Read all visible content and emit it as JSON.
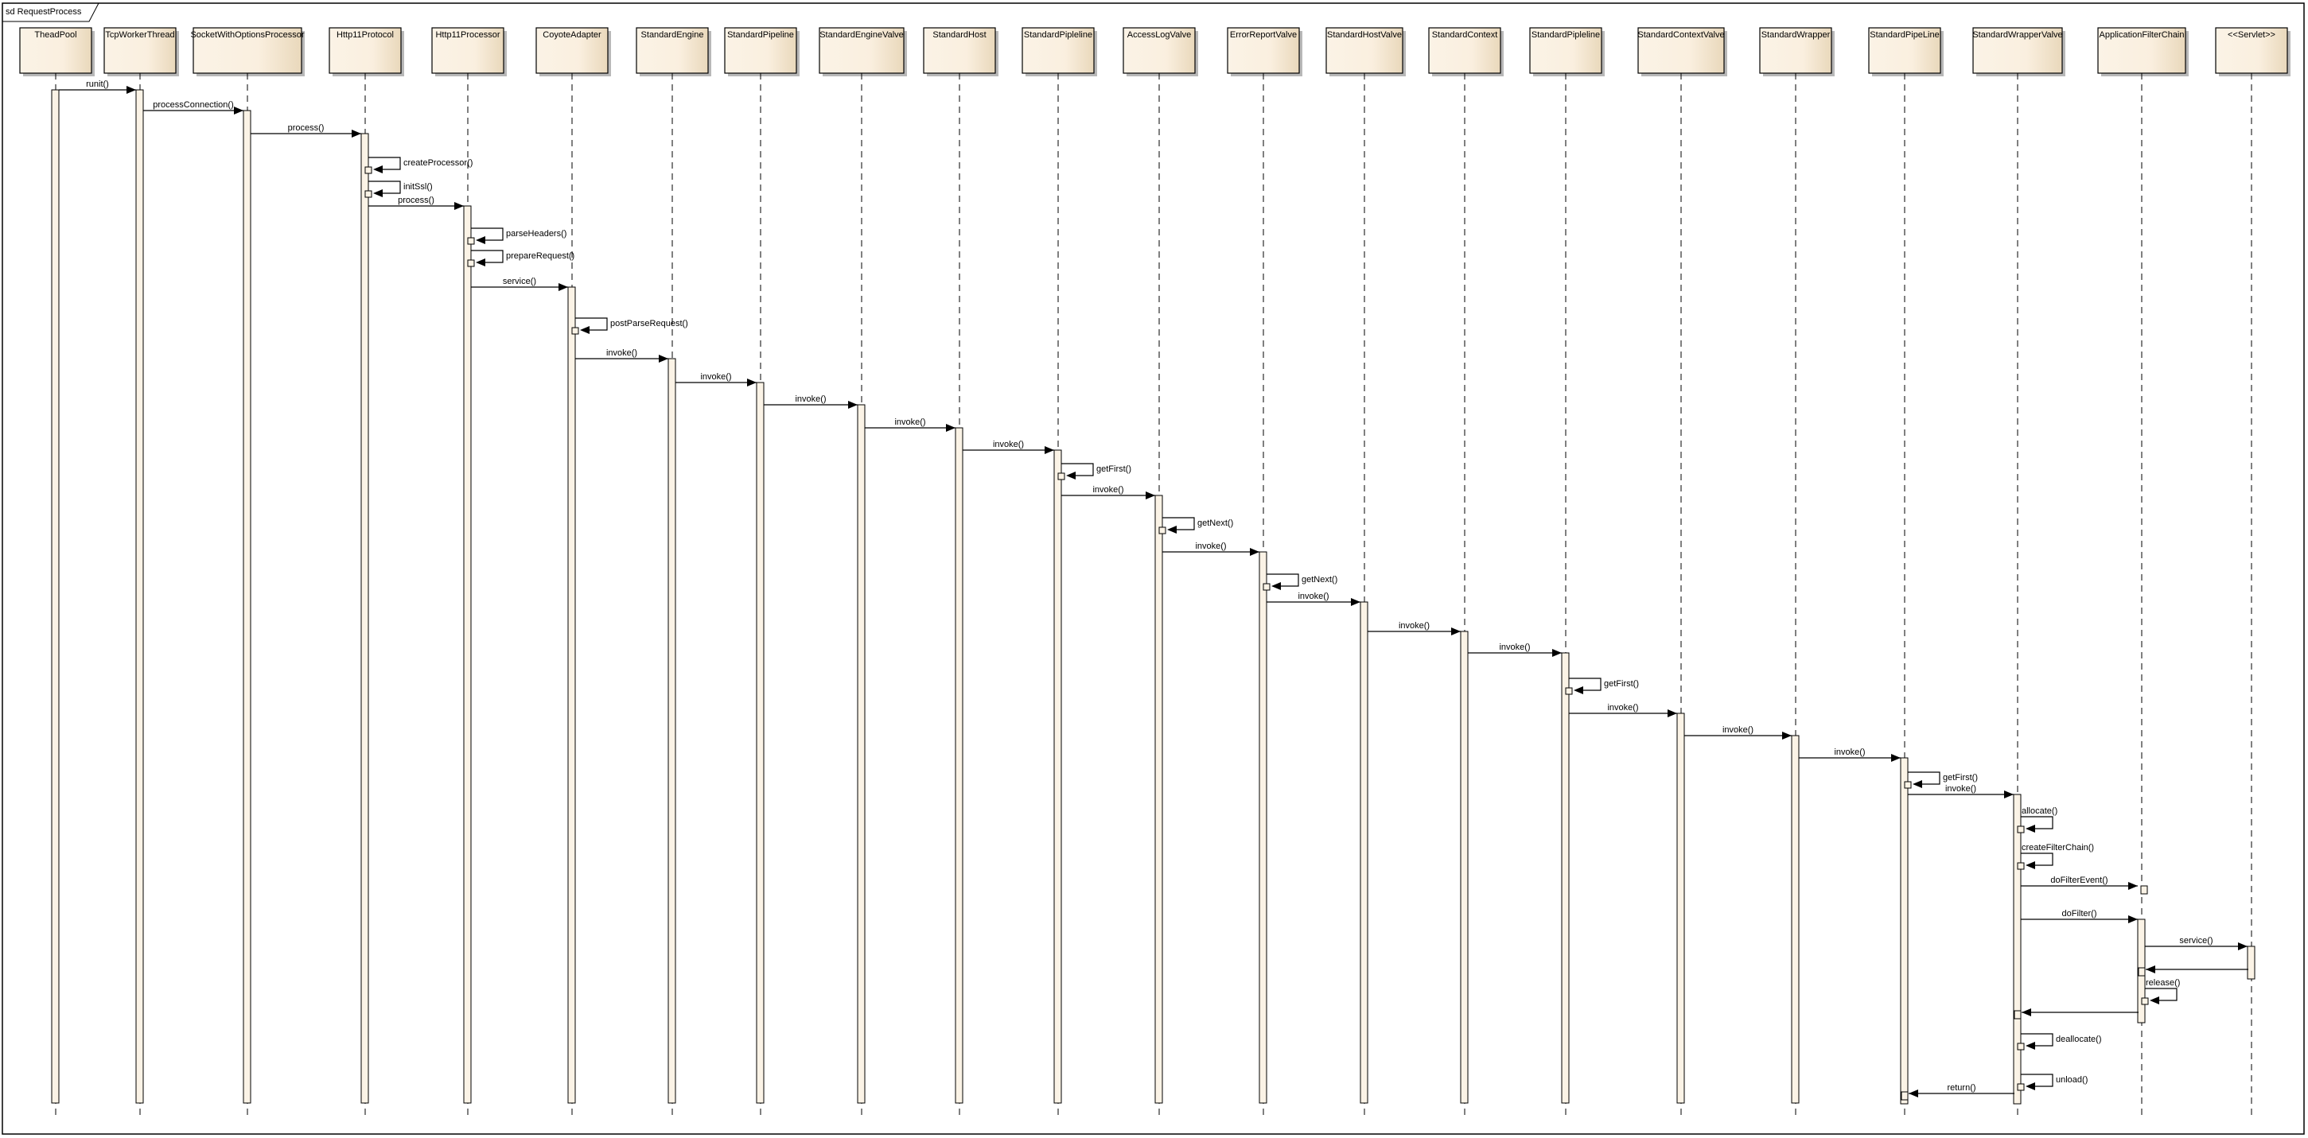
{
  "frame": {
    "title": "sd RequestProcess"
  },
  "colors": {
    "box_fill_light": "#fbf3e6",
    "box_fill_dark": "#ecdcc0",
    "activation_fill": "#fbf3e6",
    "line": "#000000",
    "shadow": "#a0a0a0"
  },
  "lifelines": [
    "TheadPool",
    "TcpWorkerThread",
    "SocketWithOptionsProcessor",
    "Http11Protocol",
    "Http11Processor",
    "CoyoteAdapter",
    "StandardEngine",
    "StandardPipeline",
    "StandardEngineValve",
    "StandardHost",
    "StandardPipleline",
    "AccessLogValve",
    "ErrorReportValve",
    "StandardHostValve",
    "StandardContext",
    "StandardPipleline",
    "StandardContextValve",
    "StandardWrapper",
    "StandardPipeLine",
    "StandardWrapperValve",
    "ApplicationFilterChain",
    "<<Servlet>>"
  ],
  "messages": [
    {
      "from": 0,
      "to": 1,
      "label": "runit()"
    },
    {
      "from": 1,
      "to": 2,
      "label": "processConnection()"
    },
    {
      "from": 2,
      "to": 3,
      "label": "process()"
    },
    {
      "from": 3,
      "to": 3,
      "label": "createProcessor()"
    },
    {
      "from": 3,
      "to": 3,
      "label": "initSsl()"
    },
    {
      "from": 3,
      "to": 4,
      "label": "process()"
    },
    {
      "from": 4,
      "to": 4,
      "label": "parseHeaders()"
    },
    {
      "from": 4,
      "to": 4,
      "label": "prepareRequest()"
    },
    {
      "from": 4,
      "to": 5,
      "label": "service()"
    },
    {
      "from": 5,
      "to": 5,
      "label": "postParseRequest()"
    },
    {
      "from": 5,
      "to": 6,
      "label": "invoke()"
    },
    {
      "from": 6,
      "to": 7,
      "label": "invoke()"
    },
    {
      "from": 7,
      "to": 8,
      "label": "invoke()"
    },
    {
      "from": 8,
      "to": 9,
      "label": "invoke()"
    },
    {
      "from": 9,
      "to": 10,
      "label": "invoke()"
    },
    {
      "from": 10,
      "to": 10,
      "label": "getFirst()"
    },
    {
      "from": 10,
      "to": 11,
      "label": "invoke()"
    },
    {
      "from": 11,
      "to": 11,
      "label": "getNext()"
    },
    {
      "from": 11,
      "to": 12,
      "label": "invoke()"
    },
    {
      "from": 12,
      "to": 12,
      "label": "getNext()"
    },
    {
      "from": 12,
      "to": 13,
      "label": "invoke()"
    },
    {
      "from": 13,
      "to": 14,
      "label": "invoke()"
    },
    {
      "from": 14,
      "to": 15,
      "label": "invoke()"
    },
    {
      "from": 15,
      "to": 15,
      "label": "getFirst()"
    },
    {
      "from": 15,
      "to": 16,
      "label": "invoke()"
    },
    {
      "from": 16,
      "to": 17,
      "label": "invoke()"
    },
    {
      "from": 17,
      "to": 18,
      "label": "invoke()"
    },
    {
      "from": 18,
      "to": 18,
      "label": "getFirst()"
    },
    {
      "from": 18,
      "to": 19,
      "label": "invoke()"
    },
    {
      "from": 19,
      "to": 19,
      "label": "allocate()"
    },
    {
      "from": 19,
      "to": 19,
      "label": "createFilterChain()"
    },
    {
      "from": 19,
      "to": 20,
      "label": "doFilterEvent()"
    },
    {
      "from": 19,
      "to": 20,
      "label": "doFilter()"
    },
    {
      "from": 20,
      "to": 21,
      "label": "service()"
    },
    {
      "from": 21,
      "to": 20,
      "label": ""
    },
    {
      "from": 20,
      "to": 20,
      "label": "release()"
    },
    {
      "from": 20,
      "to": 19,
      "label": ""
    },
    {
      "from": 19,
      "to": 19,
      "label": "deallocate()"
    },
    {
      "from": 19,
      "to": 19,
      "label": "unload()"
    },
    {
      "from": 19,
      "to": 18,
      "label": "return()"
    }
  ]
}
